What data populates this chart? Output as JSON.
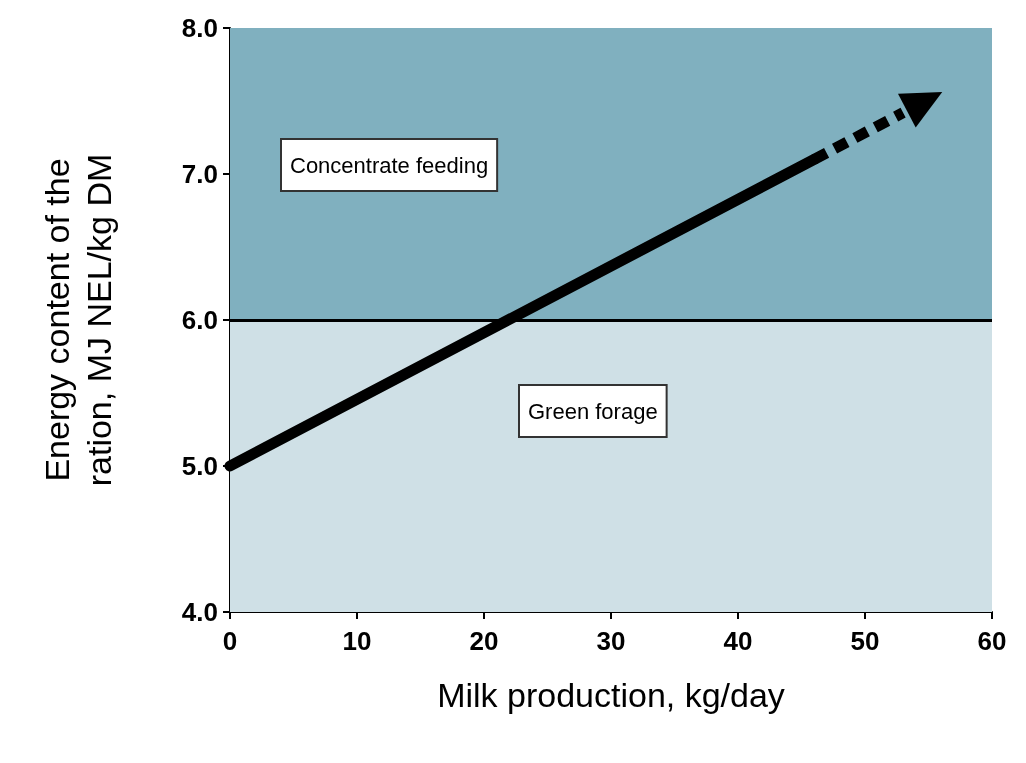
{
  "chart_data": {
    "type": "line",
    "xlabel": "Milk production, kg/day",
    "ylabel": "Energy content of the\nration, MJ NEL/kg DM",
    "xlim": [
      0,
      60
    ],
    "xticks": [
      0,
      10,
      20,
      30,
      40,
      50,
      60
    ],
    "ylim": [
      4,
      8
    ],
    "yticks": [
      {
        "value": 4,
        "label": "4.0"
      },
      {
        "value": 5,
        "label": "5.0"
      },
      {
        "value": 6,
        "label": "6.0"
      },
      {
        "value": 7,
        "label": "7.0"
      },
      {
        "value": 8,
        "label": "8.0"
      }
    ],
    "series": [
      {
        "x": [
          0,
          46
        ],
        "values": [
          5.0,
          7.1
        ],
        "color": "#000000",
        "line_style": "solid"
      },
      {
        "x": [
          46,
          53
        ],
        "values": [
          7.1,
          7.42
        ],
        "color": "#000000",
        "line_style": "dashed"
      }
    ],
    "bands": [
      {
        "axis": "y",
        "from": 6,
        "to": 8,
        "label": "Concentrate feeding",
        "color": "#80b0bf"
      },
      {
        "axis": "y",
        "from": 4,
        "to": 6,
        "label": "Green forage",
        "color": "#cfe0e6"
      }
    ],
    "ref_lines": [
      {
        "axis": "y",
        "value": 6,
        "color": "#000000"
      }
    ],
    "grid": false,
    "marker": "none"
  }
}
